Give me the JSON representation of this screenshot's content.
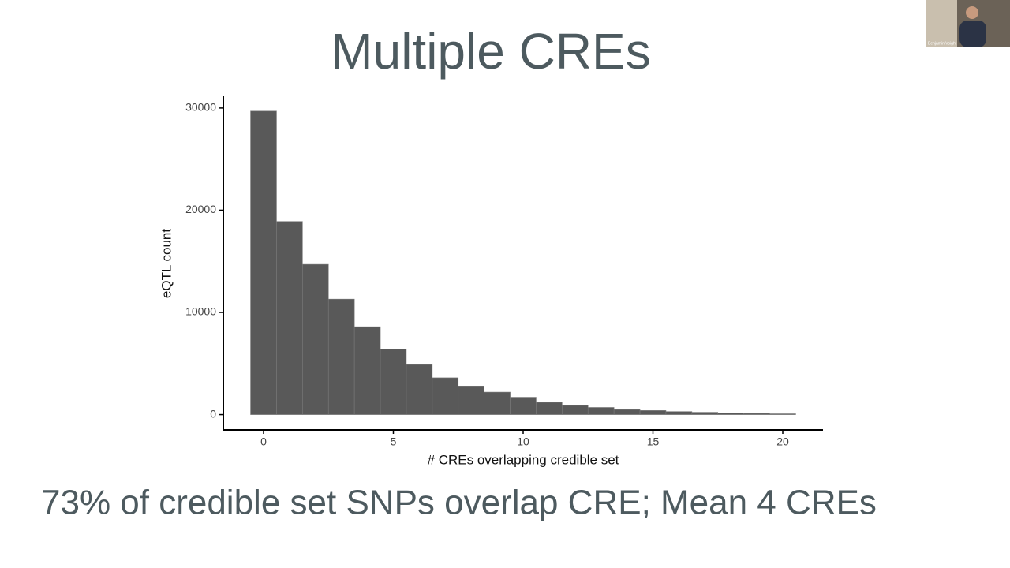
{
  "chart_data": {
    "type": "histogram",
    "title": "Multiple CREs",
    "x_label": "# CREs overlapping credible set",
    "y_label": "eQTL count",
    "bins": [
      -0.5,
      0.5,
      1.5,
      2.5,
      3.5,
      4.5,
      5.5,
      6.5,
      7.5,
      8.5,
      9.5,
      10.5,
      11.5,
      12.5,
      13.5,
      14.5,
      15.5,
      16.5,
      17.5,
      18.5,
      19.5,
      20.5
    ],
    "counts": [
      29700,
      18900,
      14700,
      11300,
      8600,
      6400,
      4900,
      3600,
      2800,
      2200,
      1700,
      1200,
      900,
      700,
      500,
      400,
      300,
      230,
      160,
      120,
      80
    ],
    "color": "#595959",
    "xlim": [
      -1.55,
      21.55
    ],
    "xticks": [
      0,
      5,
      10,
      15,
      20
    ],
    "ylim": [
      -1500,
      31150
    ],
    "yticks": [
      0,
      10000,
      20000,
      30000
    ],
    "grid": false,
    "caption": "73% of credible set SNPs overlap CRE; Mean 4 CREs"
  },
  "video_tile": {
    "name": "Benjamin Voight"
  }
}
